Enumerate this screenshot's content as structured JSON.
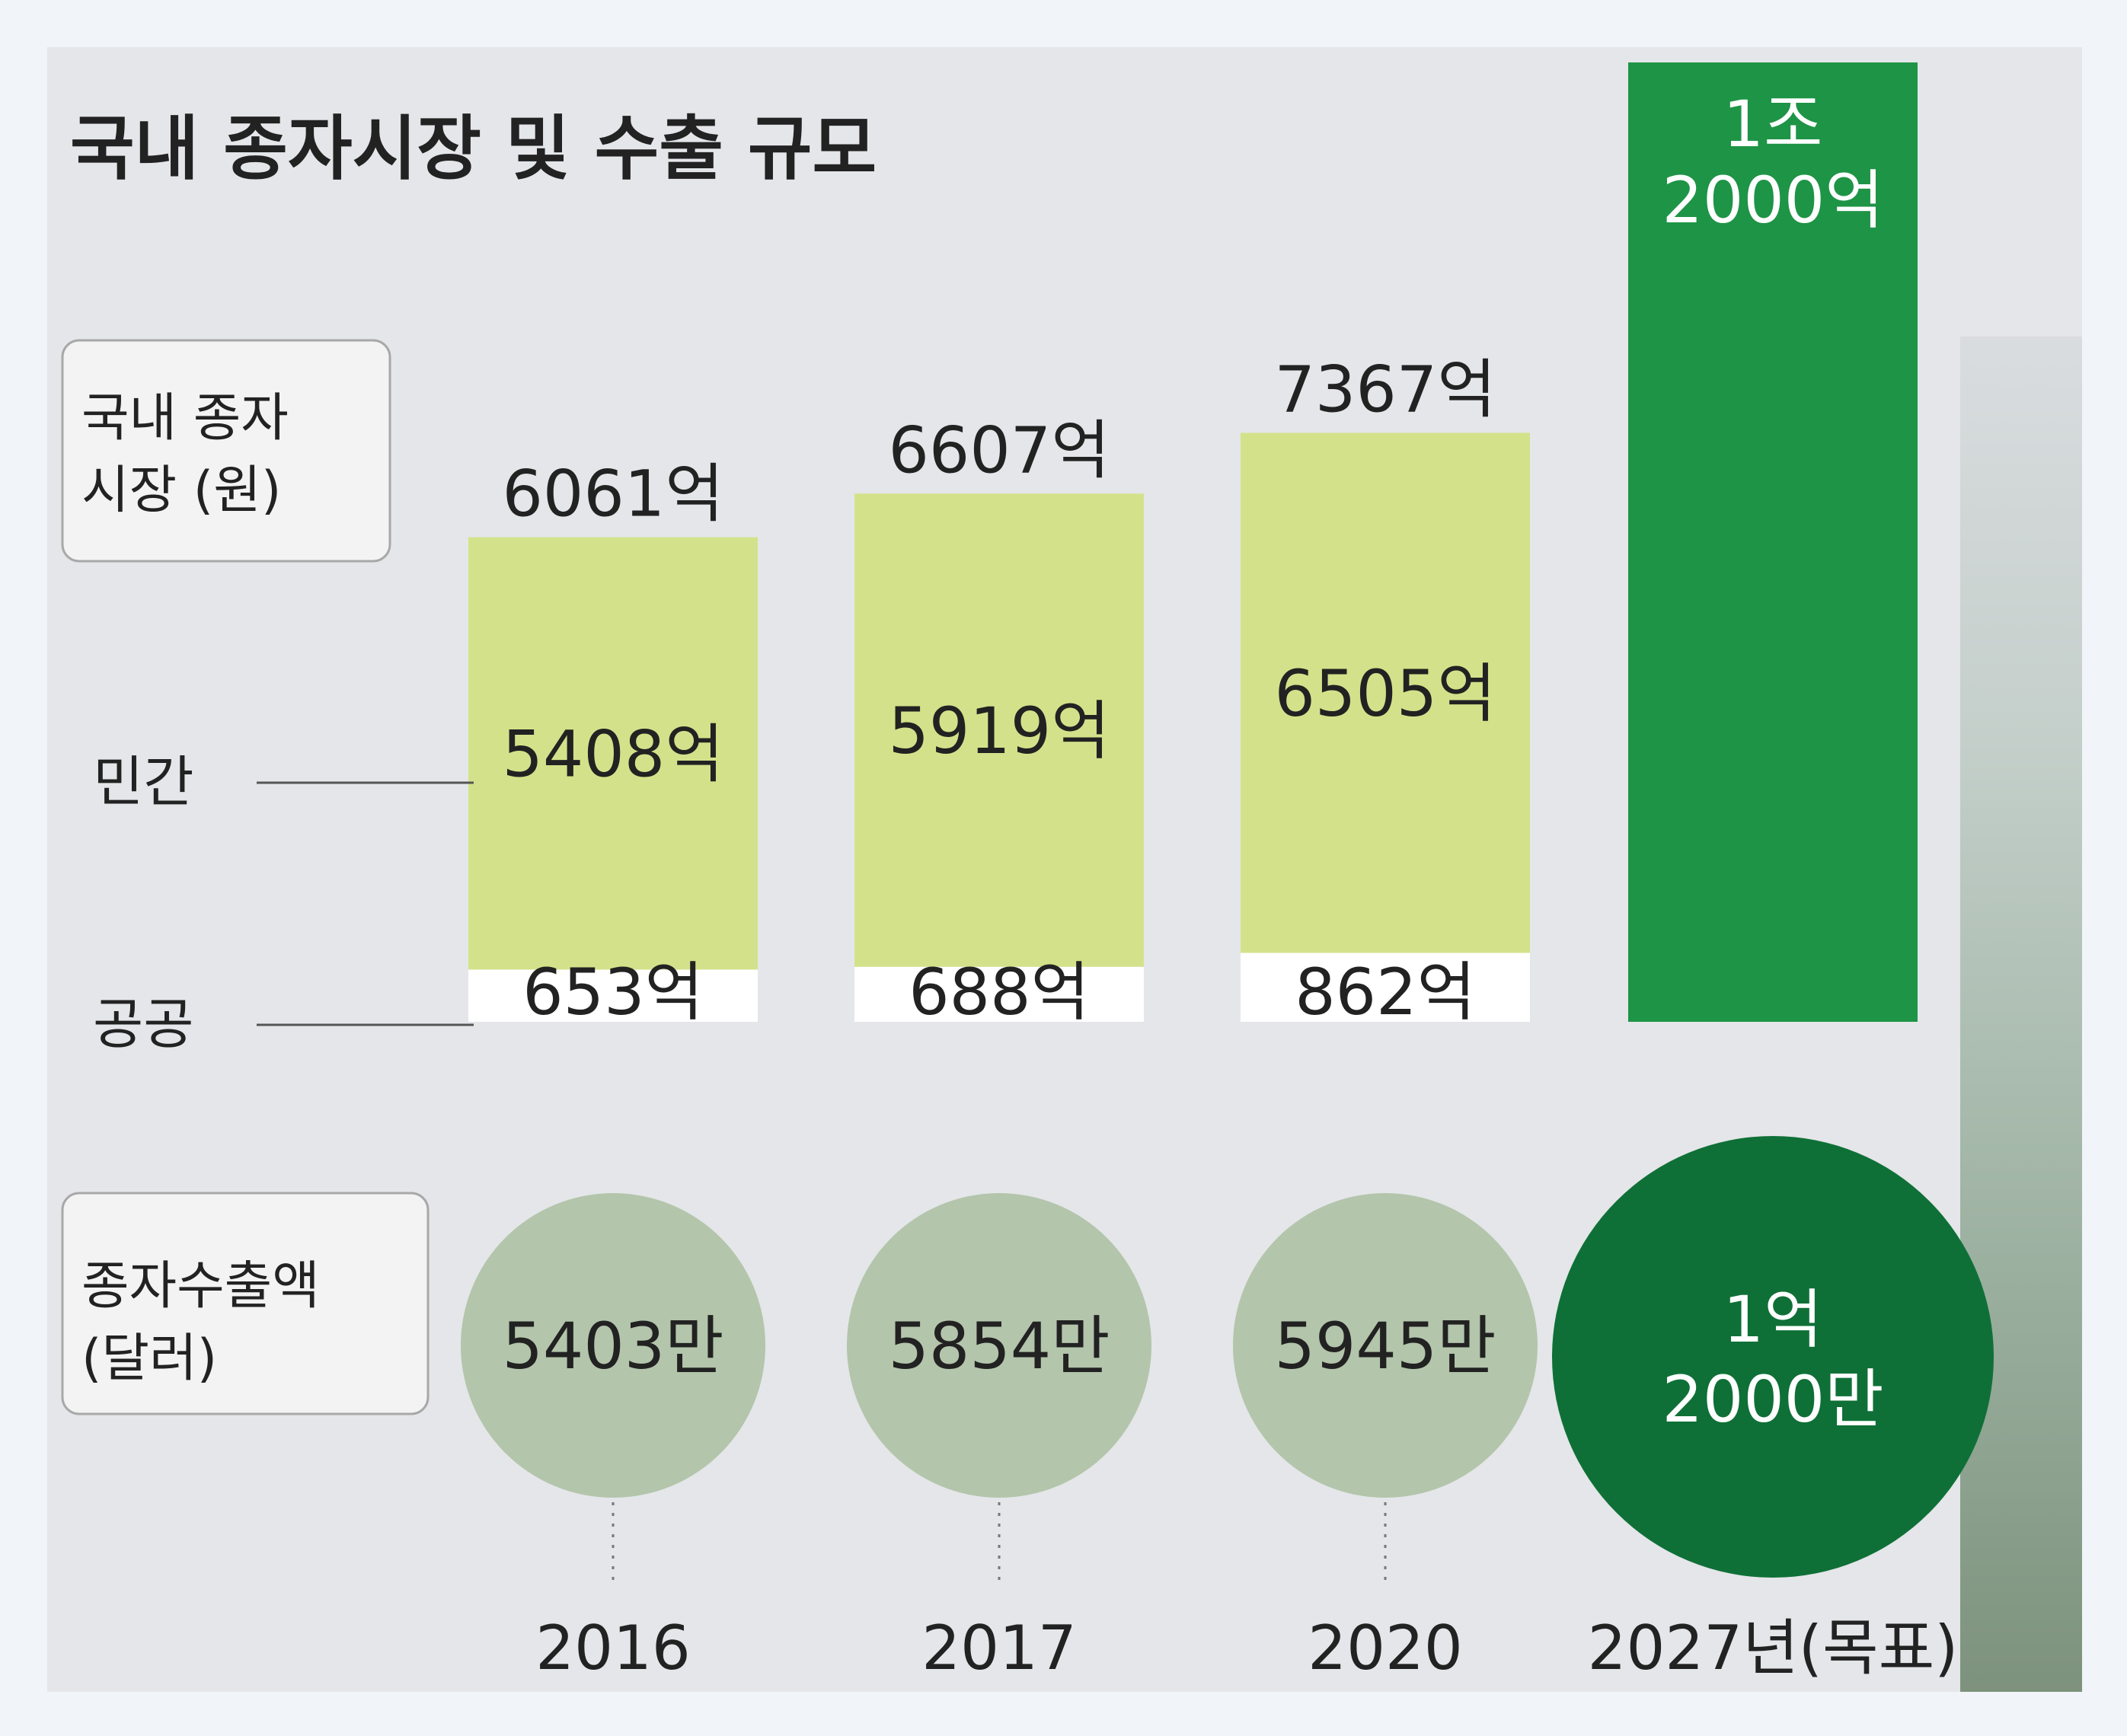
{
  "chart_data": {
    "type": "bar",
    "title": "국내 종자시장 및 수출 규모",
    "categories": [
      "2016",
      "2017",
      "2020",
      "2027년(목표)"
    ],
    "market_label": [
      "국내 종자",
      "시장 (원)"
    ],
    "export_label": [
      "종자수출액",
      "(달러)"
    ],
    "series_labels": {
      "private": "민간",
      "public": "공공"
    },
    "market_total": [
      6061,
      6607,
      7367,
      12000
    ],
    "market_total_labels": [
      "6061억",
      "6607억",
      "7367억"
    ],
    "target_label": [
      "1조",
      "2000억"
    ],
    "private": [
      5408,
      5919,
      6505
    ],
    "private_labels": [
      "5408억",
      "5919억",
      "6505억"
    ],
    "public": [
      653,
      688,
      862
    ],
    "public_labels": [
      "653억",
      "688억",
      "862억"
    ],
    "exports": [
      5403,
      5854,
      5945,
      12000
    ],
    "export_labels": [
      "5403만",
      "5854만",
      "5945만"
    ],
    "export_target_label": [
      "1억",
      "2000만"
    ],
    "units": {
      "market": "억 원",
      "exports": "만 달러"
    }
  },
  "colors": {
    "private_bar": "#d3e28a",
    "public_bar": "#ffffff",
    "target_bar": "#1e9446",
    "export_circle": "#b3c5ab",
    "export_target_circle": "#0f7037",
    "background": "#e4e6e9"
  }
}
